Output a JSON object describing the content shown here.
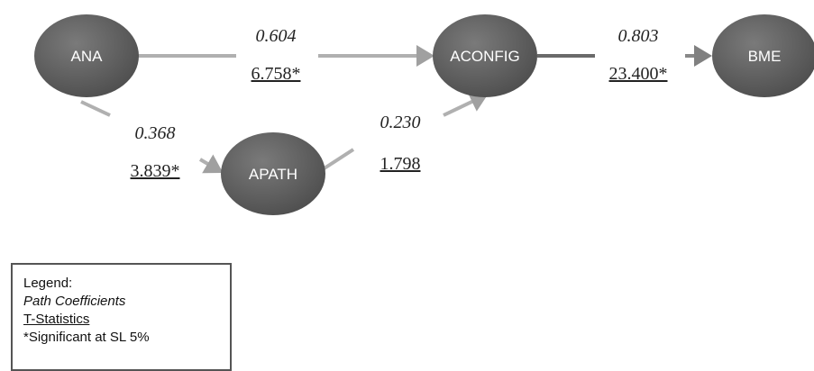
{
  "nodes": {
    "ana": "ANA",
    "aconfig": "ACONFIG",
    "bme": "BME",
    "apath": "APATH"
  },
  "paths": {
    "ana_aconfig": {
      "coefficient": "0.604",
      "t_statistic": "6.758*"
    },
    "aconfig_bme": {
      "coefficient": "0.803",
      "t_statistic": "23.400*"
    },
    "ana_apath": {
      "coefficient": "0.368",
      "t_statistic": "3.839*"
    },
    "apath_aconfig": {
      "coefficient": "0.230",
      "t_statistic": "1.798"
    }
  },
  "legend": {
    "title": "Legend:",
    "path_coefficients": "Path Coefficients",
    "t_statistics": "T-Statistics",
    "significance": "*Significant at SL 5%"
  },
  "colors": {
    "node_fill": "#5e5e5e",
    "arrow": "#a8a8a8",
    "arrow_dark": "#6a6a6a"
  }
}
